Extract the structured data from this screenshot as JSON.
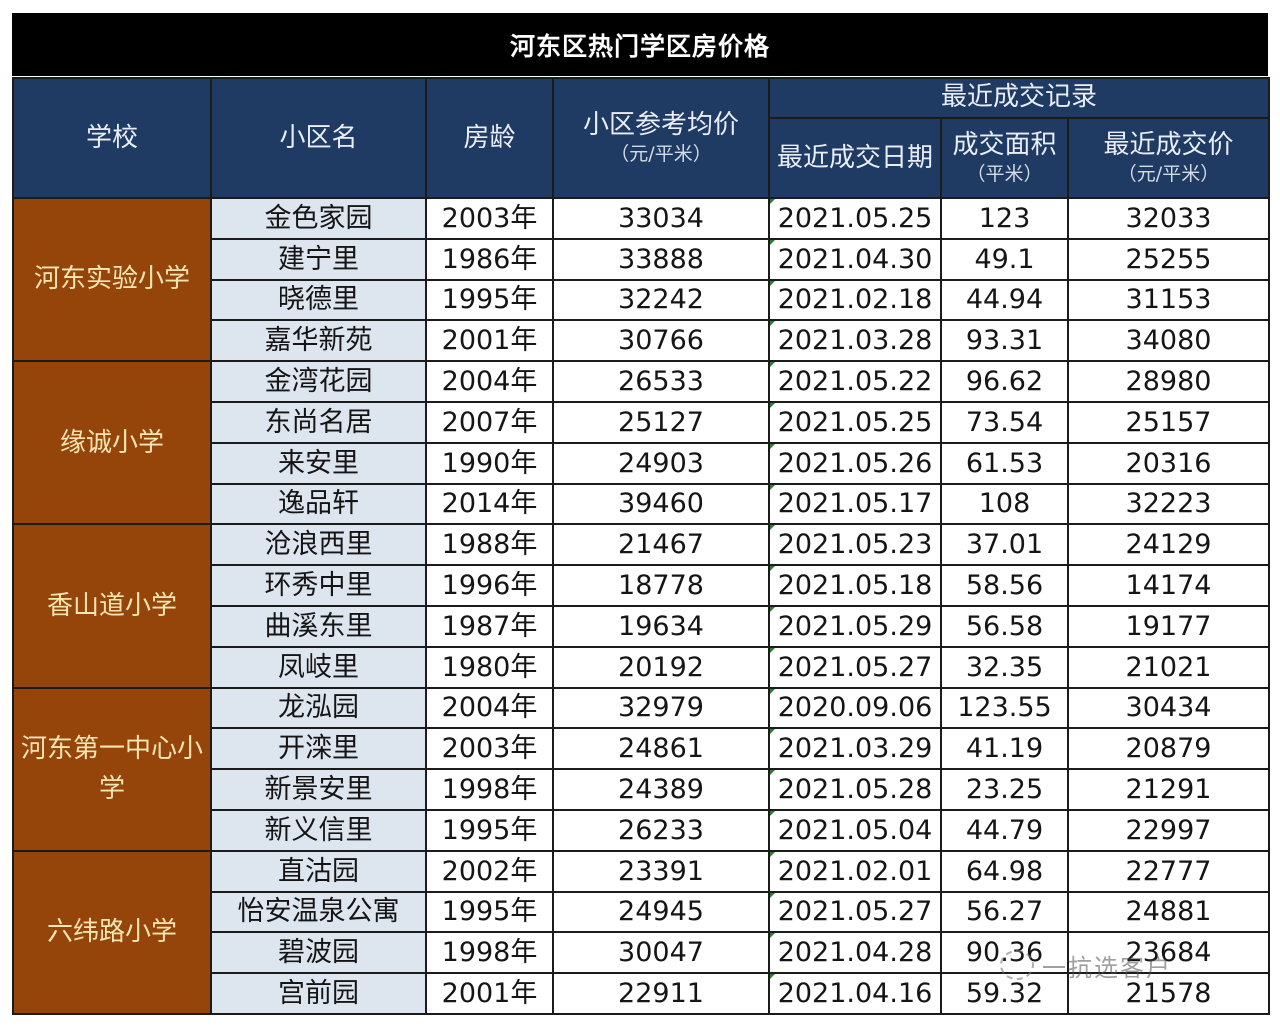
{
  "title": "河东区热门学区房价格",
  "headers": {
    "school": "学校",
    "community": "小区名",
    "age": "房龄",
    "avg_price": "小区参考均价",
    "avg_price_unit": "（元/平米）",
    "recent_group": "最近成交记录",
    "recent_date": "最近成交日期",
    "recent_area": "成交面积",
    "recent_area_unit": "（平米）",
    "recent_price": "最近成交价",
    "recent_price_unit": "（元/平米）"
  },
  "groups": [
    {
      "school": "河东实验小学",
      "rows": [
        {
          "name": "金色家园",
          "age": "2003年",
          "avg_price": "33034",
          "date": "2021.05.25",
          "area": "123",
          "price": "32033"
        },
        {
          "name": "建宁里",
          "age": "1986年",
          "avg_price": "33888",
          "date": "2021.04.30",
          "area": "49.1",
          "price": "25255"
        },
        {
          "name": "晓德里",
          "age": "1995年",
          "avg_price": "32242",
          "date": "2021.02.18",
          "area": "44.94",
          "price": "31153"
        },
        {
          "name": "嘉华新苑",
          "age": "2001年",
          "avg_price": "30766",
          "date": "2021.03.28",
          "area": "93.31",
          "price": "34080"
        }
      ]
    },
    {
      "school": "缘诚小学",
      "rows": [
        {
          "name": "金湾花园",
          "age": "2004年",
          "avg_price": "26533",
          "date": "2021.05.22",
          "area": "96.62",
          "price": "28980"
        },
        {
          "name": "东尚名居",
          "age": "2007年",
          "avg_price": "25127",
          "date": "2021.05.25",
          "area": "73.54",
          "price": "25157"
        },
        {
          "name": "来安里",
          "age": "1990年",
          "avg_price": "24903",
          "date": "2021.05.26",
          "area": "61.53",
          "price": "20316"
        },
        {
          "name": "逸品轩",
          "age": "2014年",
          "avg_price": "39460",
          "date": "2021.05.17",
          "area": "108",
          "price": "32223"
        }
      ]
    },
    {
      "school": "香山道小学",
      "rows": [
        {
          "name": "沧浪西里",
          "age": "1988年",
          "avg_price": "21467",
          "date": "2021.05.23",
          "area": "37.01",
          "price": "24129"
        },
        {
          "name": "环秀中里",
          "age": "1996年",
          "avg_price": "18778",
          "date": "2021.05.18",
          "area": "58.56",
          "price": "14174"
        },
        {
          "name": "曲溪东里",
          "age": "1987年",
          "avg_price": "19634",
          "date": "2021.05.29",
          "area": "56.58",
          "price": "19177"
        },
        {
          "name": "凤岐里",
          "age": "1980年",
          "avg_price": "20192",
          "date": "2021.05.27",
          "area": "32.35",
          "price": "21021"
        }
      ]
    },
    {
      "school": "河东第一中心小学",
      "rows": [
        {
          "name": "龙泓园",
          "age": "2004年",
          "avg_price": "32979",
          "date": "2020.09.06",
          "area": "123.55",
          "price": "30434"
        },
        {
          "name": "开滦里",
          "age": "2003年",
          "avg_price": "24861",
          "date": "2021.03.29",
          "area": "41.19",
          "price": "20879"
        },
        {
          "name": "新景安里",
          "age": "1998年",
          "avg_price": "24389",
          "date": "2021.05.28",
          "area": "23.25",
          "price": "21291"
        },
        {
          "name": "新义信里",
          "age": "1995年",
          "avg_price": "26233",
          "date": "2021.05.04",
          "area": "44.79",
          "price": "22997"
        }
      ]
    },
    {
      "school": "六纬路小学",
      "rows": [
        {
          "name": "直沽园",
          "age": "2002年",
          "avg_price": "23391",
          "date": "2021.02.01",
          "area": "64.98",
          "price": "22777"
        },
        {
          "name": "怡安温泉公寓",
          "age": "1995年",
          "avg_price": "24945",
          "date": "2021.05.27",
          "area": "56.27",
          "price": "24881"
        },
        {
          "name": "碧波园",
          "age": "1998年",
          "avg_price": "30047",
          "date": "2021.04.28",
          "area": "90.36",
          "price": "23684"
        },
        {
          "name": "宫前园",
          "age": "2001年",
          "avg_price": "22911",
          "date": "2021.04.16",
          "area": "59.32",
          "price": "21578"
        }
      ]
    }
  ],
  "watermark": {
    "icon": "wechat-icon",
    "text": "一抗选客户"
  },
  "colors": {
    "title_bg": "#000000",
    "header_bg": "#1f3b63",
    "school_bg": "#96450a",
    "school_text": "#f7e6b4",
    "name_bg": "#dde5ef",
    "cell_bg": "#ffffff"
  }
}
